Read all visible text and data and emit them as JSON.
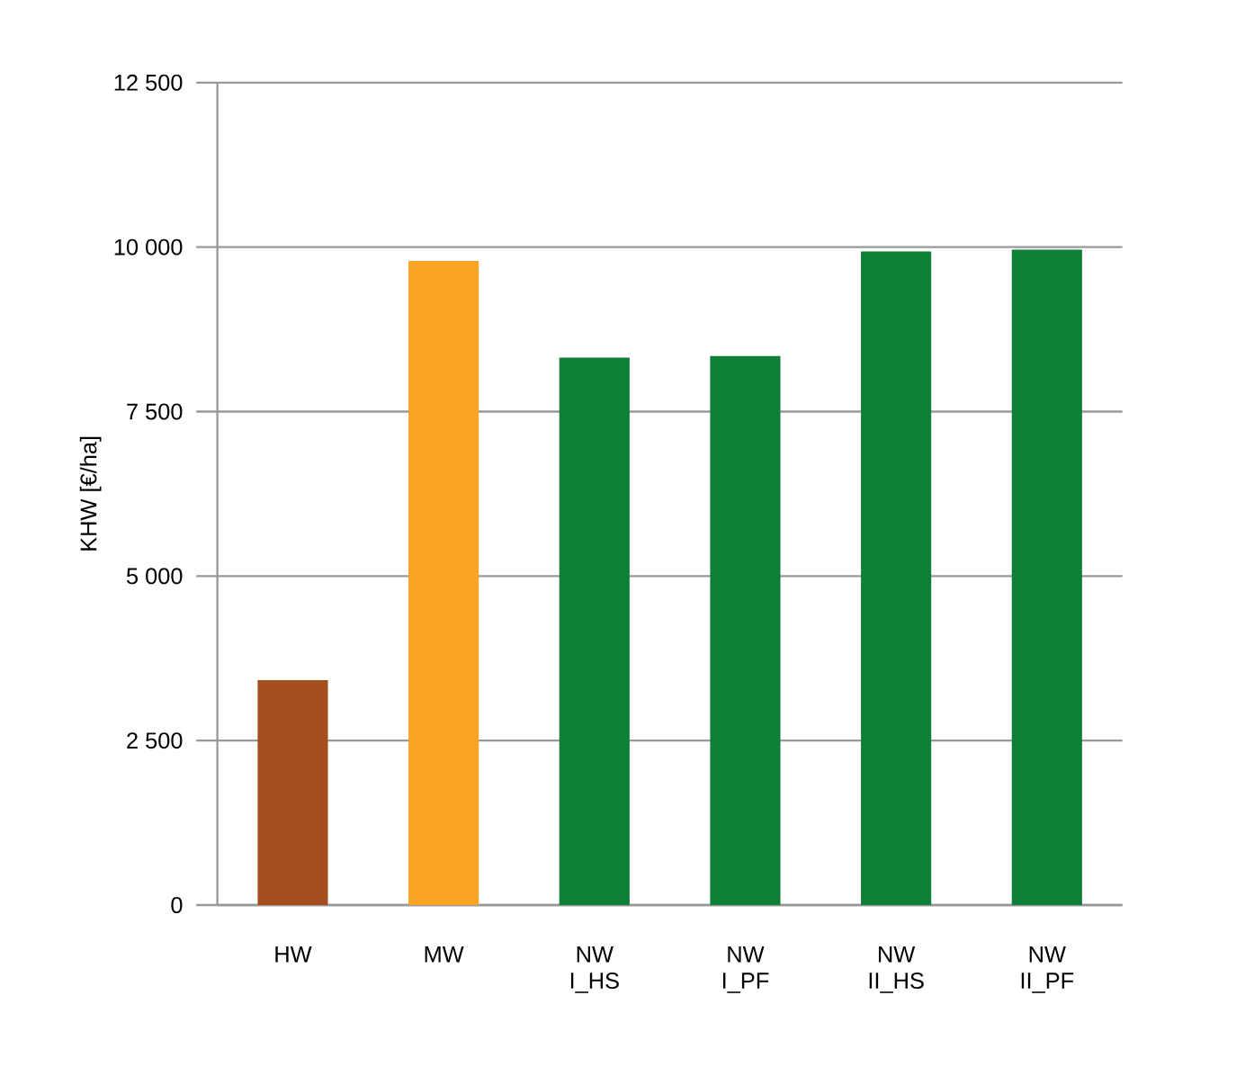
{
  "chart_data": {
    "type": "bar",
    "ylabel": "KHW [€/ha]",
    "categories": [
      "HW",
      "MW",
      "NW I_HS",
      "NW I_PF",
      "NW II_HS",
      "NW II_PF"
    ],
    "values": [
      3420,
      9790,
      8320,
      8345,
      9935,
      9960
    ],
    "colors": [
      "#a54e1e",
      "#f9a424",
      "#0e7f37",
      "#0e7f37",
      "#0e7f37",
      "#0e7f37"
    ],
    "ylim": [
      0,
      12500
    ],
    "yticks": [
      0,
      {
        "value": 2500,
        "label": "2 500"
      },
      {
        "value": 5000,
        "label": "5 000"
      },
      {
        "value": 7500,
        "label": "7 500"
      },
      {
        "value": 10000,
        "label": "10 000"
      },
      {
        "value": 12500,
        "label": "12 500"
      }
    ],
    "grid": "y"
  }
}
